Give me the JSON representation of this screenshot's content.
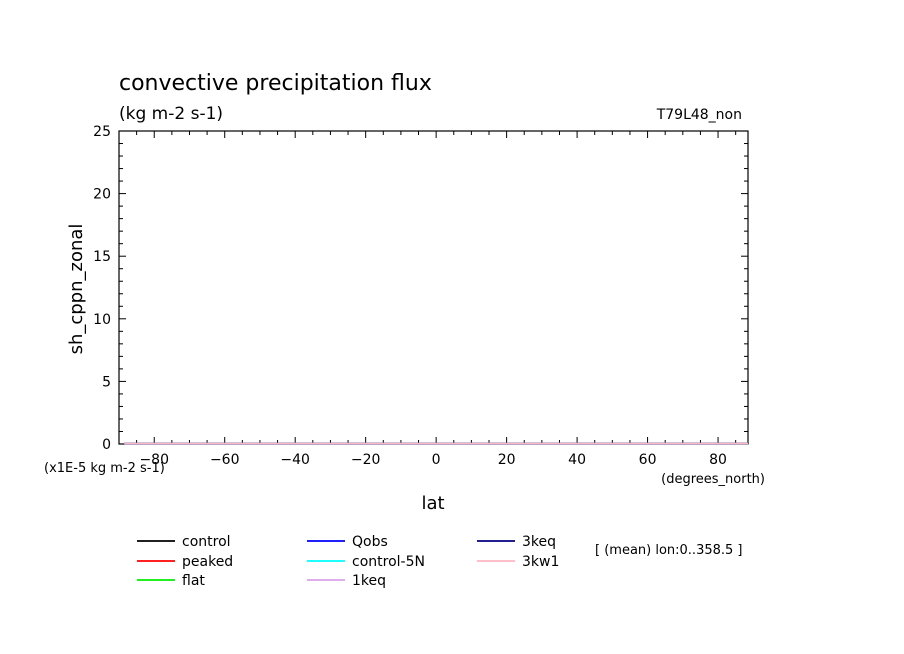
{
  "chart_data": {
    "type": "line",
    "title": "convective precipitation flux",
    "units": "(kg m-2 s-1)",
    "run_label": "T79L48_non",
    "xlabel": "lat",
    "x_units": "(degrees_north)",
    "ylabel": "sh_cppn_zonal",
    "y_scale_note": "(x1E-5 kg m-2 s-1)",
    "averaging_note": "[ (mean) lon:0..358.5 ]",
    "xlim": [
      -90,
      88.5
    ],
    "ylim": [
      0,
      25
    ],
    "x_ticks": [
      -80,
      -60,
      -40,
      -20,
      0,
      20,
      40,
      60,
      80
    ],
    "y_ticks": [
      0,
      5,
      10,
      15,
      20,
      25
    ],
    "x": [
      -88.5,
      88.5
    ],
    "series": [
      {
        "name": "control",
        "color": "#000000",
        "values": [
          0,
          0
        ]
      },
      {
        "name": "peaked",
        "color": "#ff0000",
        "values": [
          0,
          0
        ]
      },
      {
        "name": "flat",
        "color": "#00ee00",
        "values": [
          0,
          0
        ]
      },
      {
        "name": "Qobs",
        "color": "#0000ff",
        "values": [
          0,
          0
        ]
      },
      {
        "name": "control-5N",
        "color": "#00ffff",
        "values": [
          0,
          0
        ]
      },
      {
        "name": "1keq",
        "color": "#d8a0e8",
        "values": [
          0,
          0
        ]
      },
      {
        "name": "3keq",
        "color": "#000080",
        "values": [
          0,
          0
        ]
      },
      {
        "name": "3kw1",
        "color": "#ffb6c1",
        "values": [
          0,
          0
        ]
      }
    ],
    "legend": "below-left"
  }
}
